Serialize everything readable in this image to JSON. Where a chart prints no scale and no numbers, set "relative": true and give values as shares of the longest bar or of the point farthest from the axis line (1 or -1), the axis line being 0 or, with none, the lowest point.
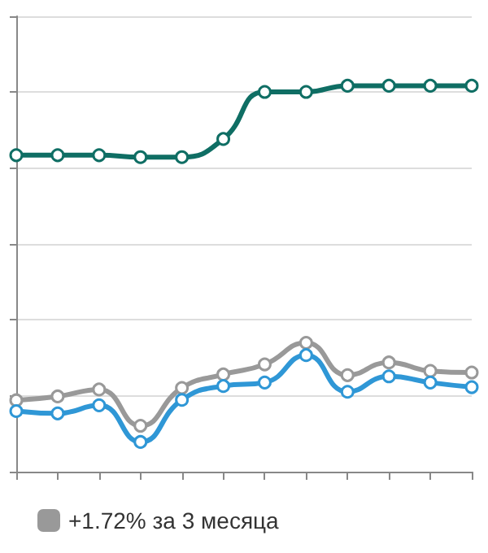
{
  "chart_data": {
    "type": "line",
    "relative": true,
    "categories": [
      null,
      null,
      null,
      null,
      null,
      null,
      null,
      null,
      null,
      null,
      null,
      null
    ],
    "series": [
      {
        "color": "#0f6e64",
        "values": [
          0.82,
          0.82,
          0.82,
          0.815,
          0.815,
          0.862,
          0.984,
          0.984,
          1,
          1,
          1,
          1
        ]
      },
      {
        "name": "+1.72% за 3 месяца",
        "color": "#999999",
        "values": [
          0.185,
          0.195,
          0.213,
          0.119,
          0.217,
          0.252,
          0.278,
          0.334,
          0.25,
          0.283,
          0.261,
          0.257
        ]
      },
      {
        "color": "#2f97d6",
        "values": [
          0.157,
          0.151,
          0.172,
          0.077,
          0.186,
          0.222,
          0.231,
          0.302,
          0.207,
          0.247,
          0.231,
          0.219
        ]
      }
    ],
    "grid": "y",
    "legend": "bottom left",
    "marker": "circle",
    "line_style": "solid"
  }
}
